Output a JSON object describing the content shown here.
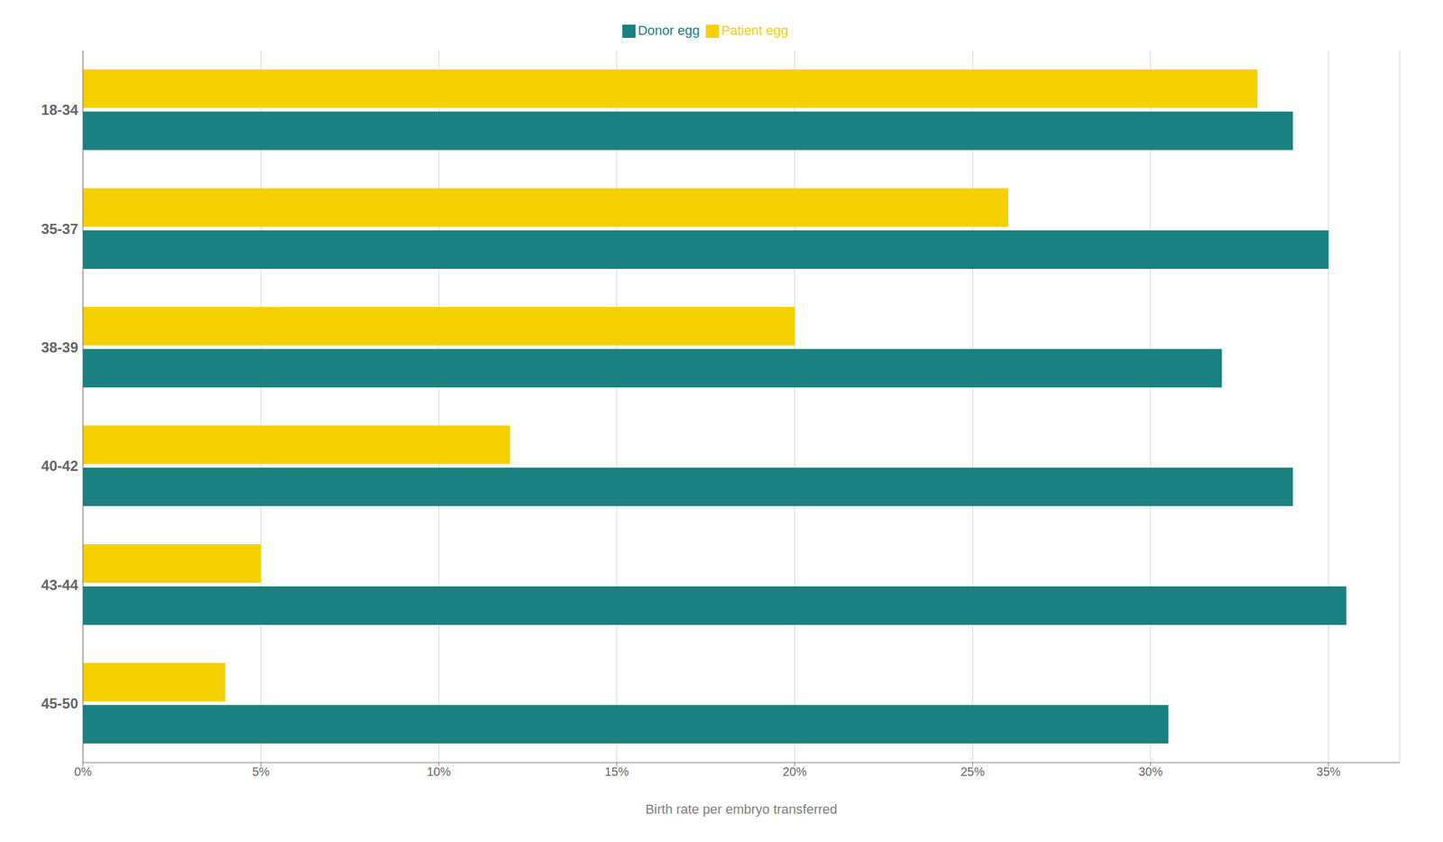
{
  "chart_data": {
    "type": "bar",
    "orientation": "horizontal",
    "categories": [
      "18-34",
      "35-37",
      "38-39",
      "40-42",
      "43-44",
      "45-50"
    ],
    "series": [
      {
        "name": "Patient egg",
        "color": "#F5D000",
        "values": [
          33,
          26,
          20,
          12,
          5,
          4
        ]
      },
      {
        "name": "Donor egg",
        "color": "#1A8080",
        "values": [
          34,
          35,
          32,
          34,
          35.5,
          30.5
        ]
      }
    ],
    "xlabel": "Birth rate per embryo transferred",
    "xlim": [
      0,
      37
    ],
    "xticks": [
      {
        "value": 0,
        "label": "0%"
      },
      {
        "value": 5,
        "label": "5%"
      },
      {
        "value": 10,
        "label": "10%"
      },
      {
        "value": 15,
        "label": "15%"
      },
      {
        "value": 20,
        "label": "20%"
      },
      {
        "value": 25,
        "label": "25%"
      },
      {
        "value": 30,
        "label": "30%"
      },
      {
        "value": 35,
        "label": "35%"
      }
    ],
    "grid": true,
    "legend": "top"
  }
}
